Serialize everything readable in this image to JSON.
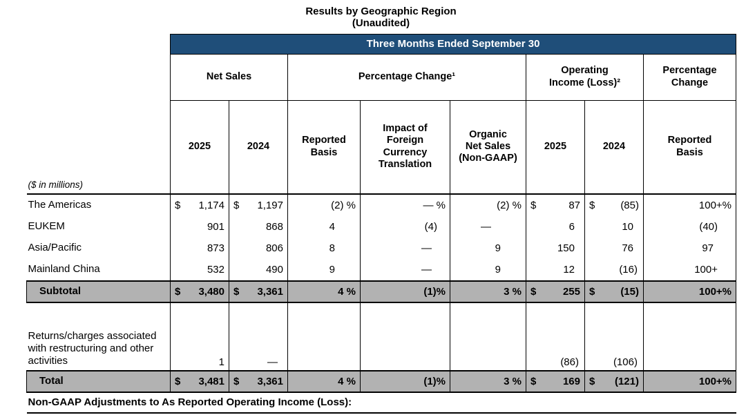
{
  "title": {
    "line1": "Results by Geographic Region",
    "line2": "(Unaudited)"
  },
  "colors": {
    "banner_bg": "#1F4E79",
    "banner_text": "#FFFFFF",
    "total_row_bg": "#B2B2B2",
    "border": "#000000"
  },
  "table": {
    "banner": "Three Months Ended September 30",
    "groups": [
      {
        "lines": [
          "Net Sales"
        ],
        "span": 2
      },
      {
        "lines": [
          "Percentage Change¹"
        ],
        "span": 3
      },
      {
        "lines": [
          "Operating",
          "Income (Loss)²"
        ],
        "span": 2
      },
      {
        "lines": [
          "Percentage",
          "Change"
        ],
        "span": 1
      }
    ],
    "subheaders": [
      {
        "lines": [
          "2025"
        ]
      },
      {
        "lines": [
          "2024"
        ]
      },
      {
        "lines": [
          "Reported",
          "Basis"
        ]
      },
      {
        "lines": [
          "Impact of",
          "Foreign",
          "Currency",
          "Translation"
        ]
      },
      {
        "lines": [
          "Organic",
          "Net Sales",
          "(Non-GAAP)"
        ]
      },
      {
        "lines": [
          "2025"
        ]
      },
      {
        "lines": [
          "2024"
        ]
      },
      {
        "lines": [
          "Reported",
          "Basis"
        ]
      }
    ],
    "units_note": "($ in millions)",
    "rows": [
      {
        "type": "plain",
        "label": "The Americas",
        "cells": [
          {
            "d": "$",
            "t": "1,174"
          },
          {
            "d": "$",
            "t": "1,197"
          },
          {
            "t": "(2) %"
          },
          {
            "t": "— %"
          },
          {
            "t": "(2) %"
          },
          {
            "d": "$",
            "t": "87",
            "p": 8
          },
          {
            "d": "$",
            "t": "(85)",
            "p": 2
          },
          {
            "t": "100+%"
          }
        ]
      },
      {
        "type": "plain",
        "label": "EUKEM",
        "cells": [
          {
            "t": "901"
          },
          {
            "t": "868"
          },
          {
            "t": "4",
            "p": 30
          },
          {
            "t": "(4)",
            "p": 12
          },
          {
            "t": "—",
            "p": 44
          },
          {
            "t": "6",
            "p": 8
          },
          {
            "t": "10",
            "p": 8
          },
          {
            "t": "(40)",
            "p": 20
          }
        ]
      },
      {
        "type": "plain",
        "label": "Asia/Pacific",
        "cells": [
          {
            "t": "873"
          },
          {
            "t": "806"
          },
          {
            "t": "8",
            "p": 30
          },
          {
            "t": "—",
            "p": 20
          },
          {
            "t": "9",
            "p": 30
          },
          {
            "t": "150",
            "p": 8
          },
          {
            "t": "76",
            "p": 8
          },
          {
            "t": "97",
            "p": 26
          }
        ]
      },
      {
        "type": "plain",
        "label": "Mainland China",
        "cells": [
          {
            "t": "532"
          },
          {
            "t": "490"
          },
          {
            "t": "9",
            "p": 30
          },
          {
            "t": "—",
            "p": 20
          },
          {
            "t": "9",
            "p": 30
          },
          {
            "t": "12",
            "p": 8
          },
          {
            "t": "(16)",
            "p": 2
          },
          {
            "t": "100+",
            "p": 20
          }
        ]
      },
      {
        "type": "subtotal",
        "label": "Subtotal",
        "cells": [
          {
            "d": "$",
            "t": "3,480"
          },
          {
            "d": "$",
            "t": "3,361"
          },
          {
            "t": "4 %"
          },
          {
            "t": "(1)%"
          },
          {
            "t": "3 %"
          },
          {
            "d": "$",
            "t": "255",
            "p": 8
          },
          {
            "d": "$",
            "t": "(15)",
            "p": 2
          },
          {
            "t": "100+%"
          }
        ]
      },
      {
        "type": "tall",
        "label": "Returns/charges associated with restructuring and other activities",
        "cells": [
          {
            "t": "1"
          },
          {
            "t": "—",
            "p": 8
          },
          {
            "t": ""
          },
          {
            "t": ""
          },
          {
            "t": ""
          },
          {
            "t": "(86)",
            "p": 2
          },
          {
            "t": "(106)",
            "p": 2
          },
          {
            "t": ""
          }
        ]
      },
      {
        "type": "total",
        "label": "Total",
        "cells": [
          {
            "d": "$",
            "t": "3,481"
          },
          {
            "d": "$",
            "t": "3,361"
          },
          {
            "t": "4 %"
          },
          {
            "t": "(1)%"
          },
          {
            "t": "3 %"
          },
          {
            "d": "$",
            "t": "169",
            "p": 8
          },
          {
            "d": "$",
            "t": "(121)",
            "p": 2
          },
          {
            "t": "100+%"
          }
        ]
      }
    ],
    "footer": "Non-GAAP Adjustments to As Reported Operating Income (Loss):"
  }
}
